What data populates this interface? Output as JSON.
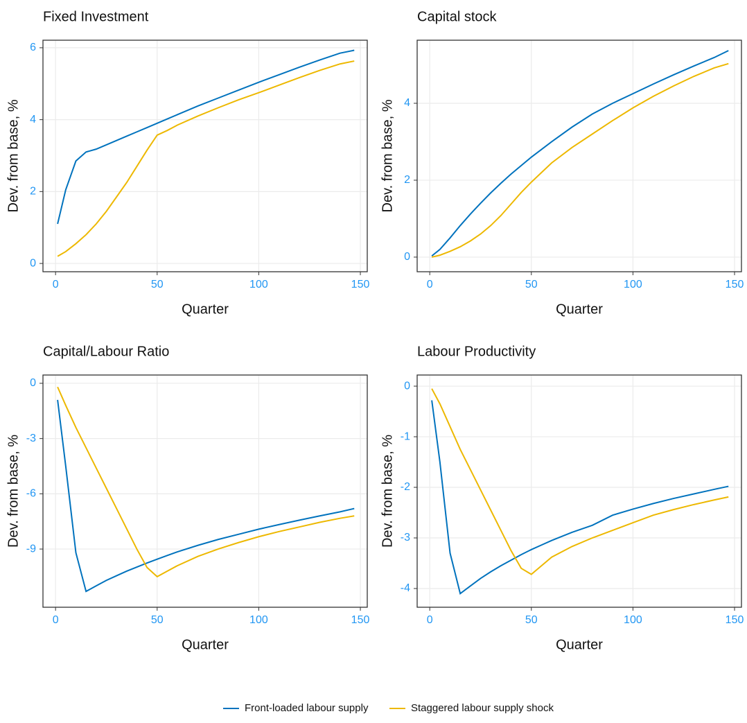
{
  "chart_data": [
    {
      "type": "line",
      "title": "Fixed Investment",
      "x_label": "Quarter",
      "y_label": "Dev. from base, %",
      "x": [
        1,
        5,
        10,
        15,
        20,
        25,
        30,
        35,
        40,
        45,
        50,
        55,
        60,
        70,
        80,
        90,
        100,
        110,
        120,
        130,
        140,
        147
      ],
      "series": [
        {
          "color": "#0072bd",
          "values": [
            1.1,
            2.05,
            2.85,
            3.1,
            3.18,
            3.3,
            3.42,
            3.54,
            3.66,
            3.78,
            3.9,
            4.02,
            4.14,
            4.38,
            4.6,
            4.82,
            5.04,
            5.25,
            5.46,
            5.66,
            5.85,
            5.93
          ]
        },
        {
          "color": "#edb800",
          "values": [
            0.2,
            0.33,
            0.55,
            0.8,
            1.1,
            1.45,
            1.85,
            2.25,
            2.7,
            3.15,
            3.57,
            3.7,
            3.85,
            4.1,
            4.33,
            4.55,
            4.75,
            4.96,
            5.17,
            5.37,
            5.55,
            5.63
          ]
        }
      ],
      "xlim": [
        -6.2,
        153.4
      ],
      "xticks": [
        0,
        50,
        100,
        150
      ],
      "ylim": [
        -0.23,
        6.21
      ],
      "yticks": [
        0,
        2,
        4,
        6
      ],
      "grid": true
    },
    {
      "type": "line",
      "title": "Capital stock",
      "x_label": "Quarter",
      "y_label": "Dev. from base, %",
      "x": [
        1,
        5,
        10,
        15,
        20,
        25,
        30,
        35,
        40,
        45,
        50,
        55,
        60,
        70,
        80,
        90,
        100,
        110,
        120,
        130,
        140,
        147
      ],
      "series": [
        {
          "color": "#0072bd",
          "values": [
            0.03,
            0.2,
            0.5,
            0.82,
            1.12,
            1.4,
            1.67,
            1.92,
            2.16,
            2.38,
            2.6,
            2.8,
            3.0,
            3.38,
            3.72,
            4.0,
            4.25,
            4.5,
            4.74,
            4.97,
            5.19,
            5.37
          ]
        },
        {
          "color": "#edb800",
          "values": [
            0,
            0.05,
            0.15,
            0.27,
            0.42,
            0.6,
            0.82,
            1.08,
            1.38,
            1.68,
            1.95,
            2.2,
            2.45,
            2.85,
            3.2,
            3.55,
            3.88,
            4.18,
            4.45,
            4.7,
            4.92,
            5.03
          ]
        }
      ],
      "xlim": [
        -6.2,
        153.4
      ],
      "xticks": [
        0,
        50,
        100,
        150
      ],
      "ylim": [
        -0.38,
        5.64
      ],
      "yticks": [
        0,
        2,
        4
      ],
      "grid": true
    },
    {
      "type": "line",
      "title": "Capital/Labour Ratio",
      "x_label": "Quarter",
      "y_label": "Dev. from base, %",
      "x": [
        1,
        5,
        10,
        15,
        20,
        25,
        30,
        35,
        40,
        45,
        50,
        55,
        60,
        70,
        80,
        90,
        100,
        110,
        120,
        130,
        140,
        147
      ],
      "series": [
        {
          "color": "#0072bd",
          "values": [
            -0.9,
            -4.5,
            -9.2,
            -11.3,
            -11.0,
            -10.7,
            -10.45,
            -10.2,
            -9.98,
            -9.76,
            -9.55,
            -9.35,
            -9.15,
            -8.8,
            -8.48,
            -8.2,
            -7.92,
            -7.67,
            -7.43,
            -7.2,
            -6.98,
            -6.8
          ]
        },
        {
          "color": "#edb800",
          "values": [
            -0.2,
            -1.2,
            -2.4,
            -3.5,
            -4.6,
            -5.7,
            -6.8,
            -7.9,
            -9.0,
            -10.0,
            -10.5,
            -10.2,
            -9.9,
            -9.4,
            -9.0,
            -8.65,
            -8.33,
            -8.05,
            -7.8,
            -7.55,
            -7.33,
            -7.2
          ]
        }
      ],
      "xlim": [
        -6.2,
        153.4
      ],
      "xticks": [
        0,
        50,
        100,
        150
      ],
      "ylim": [
        -12.16,
        0.45
      ],
      "yticks": [
        0,
        -3,
        -6,
        -9
      ],
      "grid": true
    },
    {
      "type": "line",
      "title": "Labour Productivity",
      "x_label": "Quarter",
      "y_label": "Dev. from base, %",
      "x": [
        1,
        5,
        10,
        15,
        20,
        25,
        30,
        35,
        40,
        45,
        50,
        55,
        60,
        70,
        80,
        90,
        100,
        110,
        120,
        130,
        140,
        147
      ],
      "series": [
        {
          "color": "#0072bd",
          "values": [
            -0.28,
            -1.5,
            -3.3,
            -4.1,
            -3.95,
            -3.8,
            -3.67,
            -3.55,
            -3.44,
            -3.33,
            -3.23,
            -3.14,
            -3.05,
            -2.89,
            -2.75,
            -2.55,
            -2.43,
            -2.32,
            -2.22,
            -2.13,
            -2.04,
            -1.98
          ]
        },
        {
          "color": "#edb800",
          "values": [
            -0.05,
            -0.35,
            -0.8,
            -1.25,
            -1.65,
            -2.05,
            -2.45,
            -2.85,
            -3.25,
            -3.6,
            -3.72,
            -3.55,
            -3.38,
            -3.17,
            -3.0,
            -2.85,
            -2.7,
            -2.55,
            -2.44,
            -2.34,
            -2.25,
            -2.19
          ]
        }
      ],
      "xlim": [
        -6.2,
        153.4
      ],
      "xticks": [
        0,
        50,
        100,
        150
      ],
      "ylim": [
        -4.37,
        0.22
      ],
      "yticks": [
        0,
        -1,
        -2,
        -3,
        -4
      ],
      "grid": true
    }
  ],
  "legend": [
    {
      "name": "Front-loaded labour supply",
      "color": "#0072bd"
    },
    {
      "name": "Staggered labour supply shock",
      "color": "#edb800"
    }
  ]
}
